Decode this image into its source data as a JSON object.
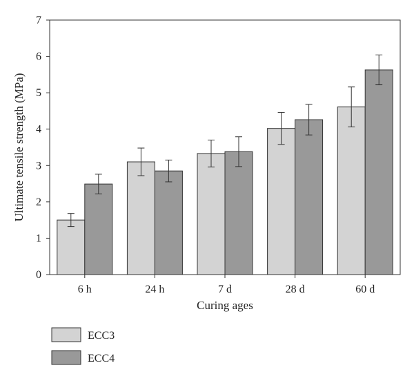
{
  "chart_data": {
    "type": "bar",
    "title": "",
    "xlabel": "Curing ages",
    "ylabel": "Ultimate tensile strength (MPa)",
    "categories": [
      "6 h",
      "24 h",
      "7 d",
      "28 d",
      "60 d"
    ],
    "ylim": [
      0,
      7
    ],
    "yticks": [
      0,
      1,
      2,
      3,
      4,
      5,
      6,
      7
    ],
    "grid": false,
    "legend_position": "bottom-left",
    "series": [
      {
        "name": "ECC3",
        "color": "#d3d3d3",
        "values": [
          1.5,
          3.1,
          3.33,
          4.02,
          4.61
        ],
        "error": [
          0.18,
          0.38,
          0.37,
          0.44,
          0.55
        ]
      },
      {
        "name": "ECC4",
        "color": "#999999",
        "values": [
          2.49,
          2.85,
          3.38,
          4.26,
          5.63
        ],
        "error": [
          0.27,
          0.3,
          0.41,
          0.42,
          0.41
        ]
      }
    ]
  }
}
